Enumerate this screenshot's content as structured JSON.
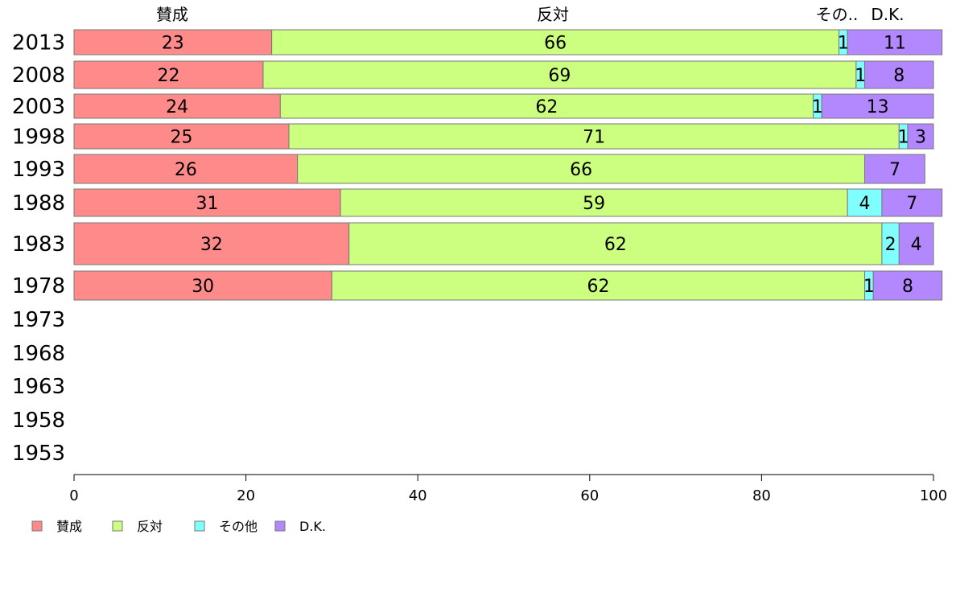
{
  "chart_data": {
    "type": "bar",
    "orientation": "horizontal",
    "stacked": true,
    "title": "",
    "xlabel": "",
    "ylabel": "",
    "xlim": [
      0,
      100
    ],
    "x_ticks": [
      0,
      20,
      40,
      60,
      80,
      100
    ],
    "grid": false,
    "legend_position": "bottom-left",
    "column_headers": [
      "賛成",
      "反対",
      "その..",
      "D.K."
    ],
    "categories": [
      "2013",
      "2008",
      "2003",
      "1998",
      "1993",
      "1988",
      "1983",
      "1978",
      "1973",
      "1968",
      "1963",
      "1958",
      "1953"
    ],
    "series": [
      {
        "name": "賛成",
        "color": "#ff8a8a",
        "values": [
          23,
          22,
          24,
          25,
          26,
          31,
          32,
          30,
          null,
          null,
          null,
          null,
          null
        ]
      },
      {
        "name": "反対",
        "color": "#ccff80",
        "values": [
          66,
          69,
          62,
          71,
          66,
          59,
          62,
          62,
          null,
          null,
          null,
          null,
          null
        ]
      },
      {
        "name": "その他",
        "color": "#80ffff",
        "values": [
          1,
          1,
          1,
          1,
          0,
          4,
          2,
          1,
          null,
          null,
          null,
          null,
          null
        ]
      },
      {
        "name": "D.K.",
        "color": "#b388ff",
        "values": [
          11,
          8,
          13,
          3,
          7,
          7,
          4,
          8,
          null,
          null,
          null,
          null,
          null
        ]
      }
    ],
    "value_labels": [
      [
        "23",
        "66",
        "1",
        "11"
      ],
      [
        "22",
        "69",
        "1",
        "8"
      ],
      [
        "24",
        "62",
        "1",
        "13"
      ],
      [
        "25",
        "71",
        "1",
        "3"
      ],
      [
        "26",
        "66",
        "",
        "7"
      ],
      [
        "31",
        "59",
        "4",
        "7"
      ],
      [
        "32",
        "62",
        "2",
        "4"
      ],
      [
        "30",
        "62",
        "1",
        "8"
      ],
      [],
      [],
      [],
      [],
      []
    ]
  }
}
